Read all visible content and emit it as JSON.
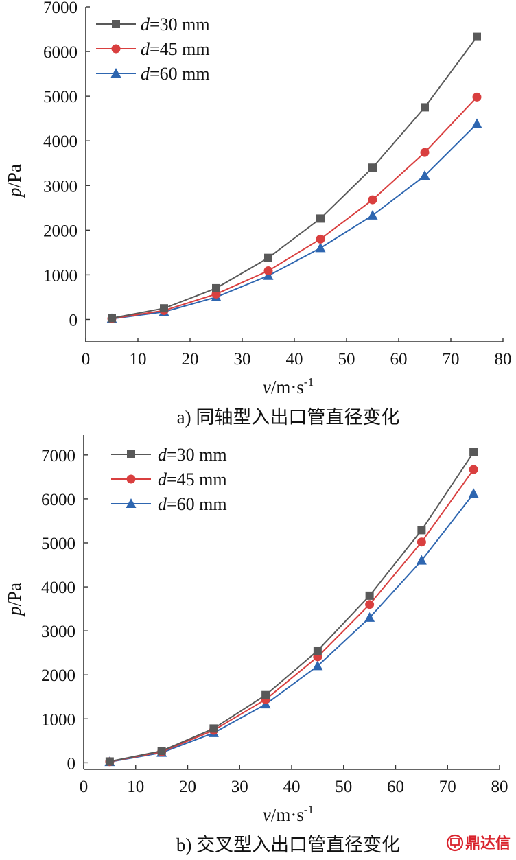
{
  "chart_data": [
    {
      "type": "line",
      "caption": "a)  同轴型入出口管直径变化",
      "x": [
        5,
        15,
        25,
        35,
        45,
        55,
        65,
        75
      ],
      "xlim": [
        0,
        80
      ],
      "ylim": [
        -500,
        7000
      ],
      "xticks": [
        0,
        10,
        20,
        30,
        40,
        50,
        60,
        70,
        80
      ],
      "yticks": [
        0,
        1000,
        2000,
        3000,
        4000,
        5000,
        6000,
        7000
      ],
      "xlabel": {
        "var": "v",
        "unit": "/m·s",
        "exp": "-1"
      },
      "ylabel": {
        "var": "p",
        "unit": "/Pa"
      },
      "legend_position": "top-left",
      "grid": false,
      "series": [
        {
          "name": "=30 mm",
          "var": "d",
          "marker": "square",
          "color": "#595959",
          "values": [
            30,
            250,
            700,
            1380,
            2260,
            3400,
            4750,
            6330
          ]
        },
        {
          "name": "=45 mm",
          "var": "d",
          "marker": "circle",
          "color": "#d93f3f",
          "values": [
            20,
            200,
            570,
            1090,
            1800,
            2680,
            3740,
            4980
          ]
        },
        {
          "name": "=60 mm",
          "var": "d",
          "marker": "triangle",
          "color": "#2e66b0",
          "values": [
            15,
            170,
            500,
            980,
            1600,
            2330,
            3220,
            4380
          ]
        }
      ]
    },
    {
      "type": "line",
      "caption": "b)  交叉型入出口管直径变化",
      "x": [
        5,
        15,
        25,
        35,
        45,
        55,
        65,
        75
      ],
      "xlim": [
        0,
        80
      ],
      "ylim": [
        -150,
        7450
      ],
      "xticks": [
        0,
        10,
        20,
        30,
        40,
        50,
        60,
        70,
        80
      ],
      "yticks": [
        0,
        1000,
        2000,
        3000,
        4000,
        5000,
        6000,
        7000
      ],
      "xlabel": {
        "var": "v",
        "unit": "/m·s",
        "exp": "-1"
      },
      "ylabel": {
        "var": "p",
        "unit": "/Pa"
      },
      "legend_position": "top-left",
      "grid": false,
      "series": [
        {
          "name": "=30 mm",
          "var": "d",
          "marker": "square",
          "color": "#595959",
          "values": [
            30,
            270,
            780,
            1540,
            2550,
            3800,
            5290,
            7060
          ]
        },
        {
          "name": "=45 mm",
          "var": "d",
          "marker": "circle",
          "color": "#d93f3f",
          "values": [
            25,
            250,
            740,
            1440,
            2410,
            3600,
            5020,
            6670
          ]
        },
        {
          "name": "=60 mm",
          "var": "d",
          "marker": "triangle",
          "color": "#2e66b0",
          "values": [
            20,
            230,
            680,
            1330,
            2200,
            3300,
            4600,
            6120
          ]
        }
      ]
    }
  ],
  "watermark": {
    "text": "鼎达信",
    "icon": "dingdaxin-logo-icon"
  }
}
